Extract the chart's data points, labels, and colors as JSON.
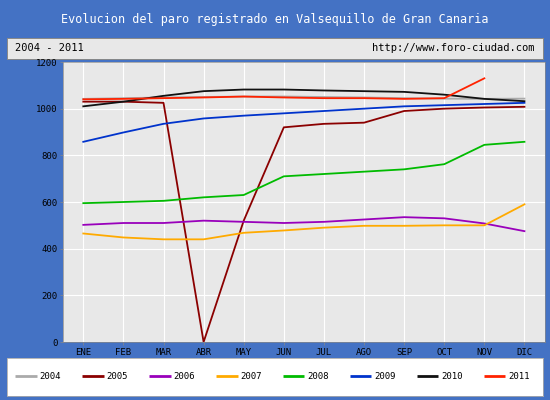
{
  "title": "Evolucion del paro registrado en Valsequillo de Gran Canaria",
  "subtitle_left": "2004 - 2011",
  "subtitle_right": "http://www.foro-ciudad.com",
  "header_bg": "#4f7fc5",
  "plot_bg": "#e8e8e8",
  "months": [
    "ENE",
    "FEB",
    "MAR",
    "ABR",
    "MAY",
    "JUN",
    "JUL",
    "AGO",
    "SEP",
    "OCT",
    "NOV",
    "DIC"
  ],
  "ylim": [
    0,
    1200
  ],
  "yticks": [
    0,
    200,
    400,
    600,
    800,
    1000,
    1200
  ],
  "series": [
    {
      "year": "2004",
      "color": "#aaaaaa",
      "data": [
        1042,
        1045,
        1048,
        1050,
        1052,
        1052,
        1050,
        1048,
        1045,
        1043,
        1042,
        1043
      ]
    },
    {
      "year": "2005",
      "color": "#8b0000",
      "data": [
        1030,
        1030,
        1025,
        0,
        520,
        920,
        935,
        940,
        990,
        1000,
        1005,
        1008
      ]
    },
    {
      "year": "2006",
      "color": "#9900bb",
      "data": [
        502,
        510,
        510,
        520,
        515,
        510,
        515,
        525,
        535,
        530,
        508,
        475
      ]
    },
    {
      "year": "2007",
      "color": "#ffaa00",
      "data": [
        465,
        448,
        440,
        440,
        468,
        478,
        490,
        498,
        498,
        500,
        500,
        590
      ]
    },
    {
      "year": "2008",
      "color": "#00bb00",
      "data": [
        595,
        600,
        605,
        620,
        630,
        710,
        720,
        730,
        740,
        762,
        845,
        858
      ]
    },
    {
      "year": "2009",
      "color": "#0033cc",
      "data": [
        858,
        898,
        935,
        958,
        970,
        980,
        990,
        1000,
        1010,
        1015,
        1020,
        1025
      ]
    },
    {
      "year": "2010",
      "color": "#111111",
      "data": [
        1010,
        1030,
        1055,
        1075,
        1082,
        1082,
        1078,
        1075,
        1072,
        1060,
        1042,
        1032
      ]
    },
    {
      "year": "2011",
      "color": "#ff2200",
      "data": [
        1040,
        1042,
        1045,
        1048,
        1052,
        1048,
        1045,
        1045,
        1042,
        1045,
        1130,
        null
      ]
    }
  ],
  "fig_bg": "#4472c4"
}
